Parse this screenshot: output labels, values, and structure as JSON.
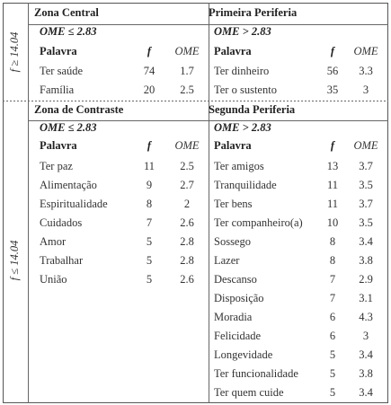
{
  "row_labels": [
    "f ≥ 14.04",
    "f ≤ 14.04"
  ],
  "columns": [
    "Palavra",
    "f",
    "OME"
  ],
  "quadrants": [
    {
      "title": "Zona Central",
      "condition": "OME ≤ 2.83",
      "rows": [
        [
          "Ter saúde",
          "74",
          "1.7"
        ],
        [
          "Família",
          "20",
          "2.5"
        ]
      ]
    },
    {
      "title": "Primeira Periferia",
      "condition": "OME > 2.83",
      "rows": [
        [
          "Ter dinheiro",
          "56",
          "3.3"
        ],
        [
          "Ter o sustento",
          "35",
          "3"
        ]
      ]
    },
    {
      "title": "Zona de Contraste",
      "condition": "OME ≤ 2.83",
      "rows": [
        [
          "Ter paz",
          "11",
          "2.5"
        ],
        [
          "Alimentação",
          "9",
          "2.7"
        ],
        [
          "Espiritualidade",
          "8",
          "2"
        ],
        [
          "Cuidados",
          "7",
          "2.6"
        ],
        [
          "Amor",
          "5",
          "2.8"
        ],
        [
          "Trabalhar",
          "5",
          "2.8"
        ],
        [
          "União",
          "5",
          "2.6"
        ]
      ]
    },
    {
      "title": "Segunda Periferia",
      "condition": "OME > 2.83",
      "rows": [
        [
          "Ter amigos",
          "13",
          "3.7"
        ],
        [
          "Tranquilidade",
          "11",
          "3.5"
        ],
        [
          "Ter bens",
          "11",
          "3.7"
        ],
        [
          "Ter companheiro(a)",
          "10",
          "3.5"
        ],
        [
          "Sossego",
          "8",
          "3.4"
        ],
        [
          "Lazer",
          "8",
          "3.8"
        ],
        [
          "Descanso",
          "7",
          "2.9"
        ],
        [
          "Disposição",
          "7",
          "3.1"
        ],
        [
          "Moradia",
          "6",
          "4.3"
        ],
        [
          "Felicidade",
          "6",
          "3"
        ],
        [
          "Longevidade",
          "5",
          "3.4"
        ],
        [
          "Ter funcionalidade",
          "5",
          "3.8"
        ],
        [
          "Ter quem cuide",
          "5",
          "3.4"
        ]
      ]
    }
  ]
}
